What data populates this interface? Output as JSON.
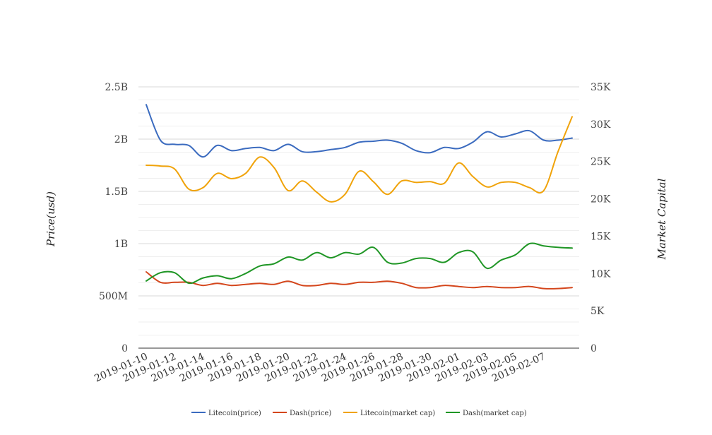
{
  "chart_data": {
    "type": "line",
    "title": "",
    "y_left_label": "Price(usd)",
    "y_right_label": "Market Capital",
    "y_left_ticks": [
      "0",
      "500M",
      "1B",
      "1.5B",
      "2B",
      "2.5B"
    ],
    "y_right_ticks": [
      "0",
      "5K",
      "10K",
      "15K",
      "20K",
      "25K",
      "30K",
      "35K"
    ],
    "y_left_range": [
      0,
      2500000000
    ],
    "y_right_range": [
      0,
      35000
    ],
    "grid": true,
    "legend_position": "bottom",
    "x_tick_labels": [
      "2019-01-10",
      "2019-01-12",
      "2019-01-14",
      "2019-01-16",
      "2019-01-18",
      "2019-01-20",
      "2019-01-22",
      "2019-01-24",
      "2019-01-26",
      "2019-01-28",
      "2019-01-30",
      "2019-02-01",
      "2019-02-03",
      "2019-02-05",
      "2019-02-07"
    ],
    "x": [
      "2019-01-10",
      "2019-01-11",
      "2019-01-12",
      "2019-01-13",
      "2019-01-14",
      "2019-01-15",
      "2019-01-16",
      "2019-01-17",
      "2019-01-18",
      "2019-01-19",
      "2019-01-20",
      "2019-01-21",
      "2019-01-22",
      "2019-01-23",
      "2019-01-24",
      "2019-01-25",
      "2019-01-26",
      "2019-01-27",
      "2019-01-28",
      "2019-01-29",
      "2019-01-30",
      "2019-01-31",
      "2019-02-01",
      "2019-02-02",
      "2019-02-03",
      "2019-02-04",
      "2019-02-05",
      "2019-02-06",
      "2019-02-07",
      "2019-02-08",
      "2019-02-09"
    ],
    "series": [
      {
        "name": "Litecoin(price)",
        "axis": "left",
        "color": "#3b6bbf",
        "values": [
          2330000000,
          1990000000,
          1950000000,
          1940000000,
          1830000000,
          1940000000,
          1890000000,
          1910000000,
          1920000000,
          1890000000,
          1950000000,
          1880000000,
          1880000000,
          1900000000,
          1920000000,
          1970000000,
          1980000000,
          1990000000,
          1960000000,
          1890000000,
          1870000000,
          1920000000,
          1910000000,
          1970000000,
          2070000000,
          2020000000,
          2050000000,
          2080000000,
          1990000000,
          1990000000,
          2010000000
        ]
      },
      {
        "name": "Dash(price)",
        "axis": "left",
        "color": "#d4461c",
        "values": [
          730000000,
          630000000,
          630000000,
          630000000,
          600000000,
          620000000,
          600000000,
          610000000,
          620000000,
          610000000,
          640000000,
          600000000,
          600000000,
          620000000,
          610000000,
          630000000,
          630000000,
          640000000,
          620000000,
          580000000,
          580000000,
          600000000,
          590000000,
          580000000,
          590000000,
          580000000,
          580000000,
          590000000,
          570000000,
          570000000,
          580000000
        ]
      },
      {
        "name": "Litecoin(market cap)",
        "axis": "right",
        "color": "#f0a30a",
        "values": [
          24500,
          24400,
          24000,
          21300,
          21500,
          23400,
          22700,
          23400,
          25600,
          24200,
          21100,
          22400,
          20900,
          19600,
          20600,
          23700,
          22300,
          20600,
          22400,
          22200,
          22300,
          22100,
          24800,
          23000,
          21600,
          22200,
          22200,
          21500,
          21100,
          26300,
          31000
        ]
      },
      {
        "name": "Dash(market cap)",
        "axis": "right",
        "color": "#1f9625",
        "values": [
          9000,
          10100,
          10100,
          8700,
          9400,
          9700,
          9300,
          10000,
          11000,
          11300,
          12200,
          11800,
          12800,
          12100,
          12800,
          12600,
          13500,
          11500,
          11400,
          12000,
          12000,
          11500,
          12800,
          12900,
          10700,
          11800,
          12500,
          14000,
          13700,
          13500,
          13400
        ]
      }
    ]
  }
}
